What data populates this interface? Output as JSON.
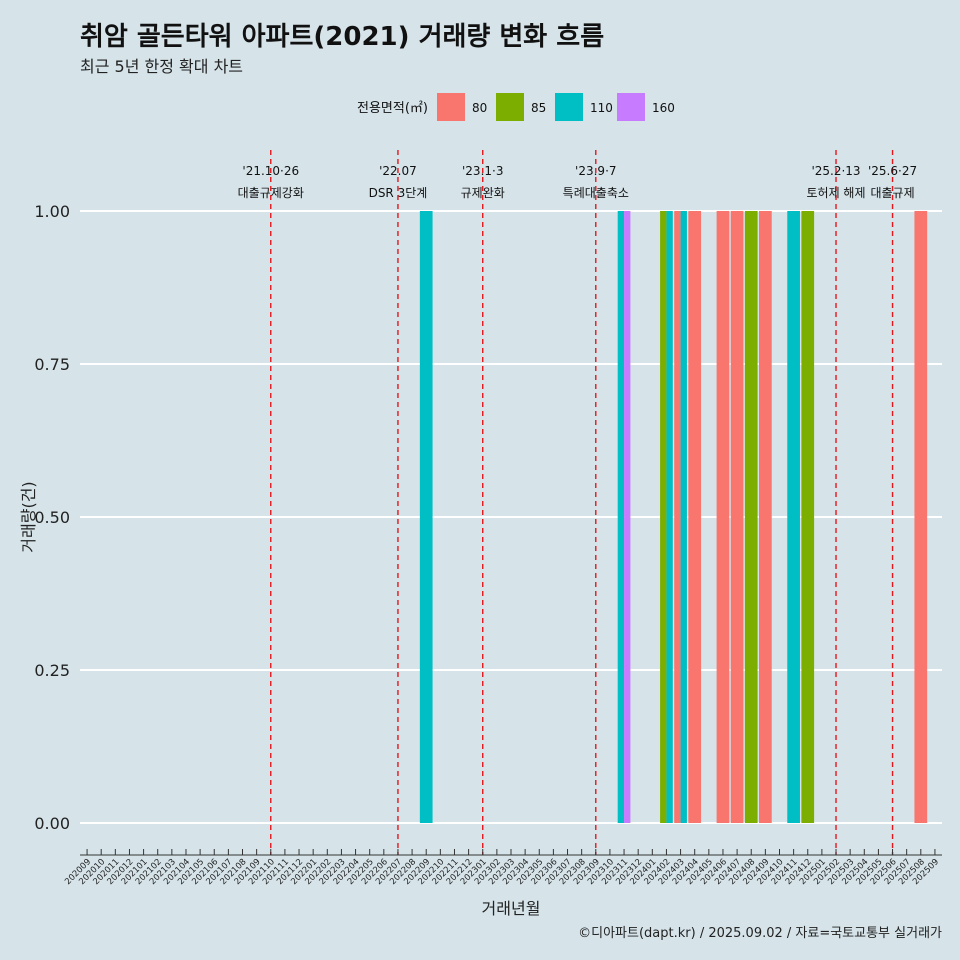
{
  "title": "취암 골든타워 아파트(2021) 거래량 변화 흐름",
  "subtitle": "최근 5년 한정 확대 차트",
  "caption": "©디아파트(dapt.kr) / 2025.09.02 / 자료=국토교통부 실거래가",
  "chart_data": {
    "type": "bar",
    "xlabel": "거래년월",
    "ylabel": "거래량(건)",
    "ylim": [
      0,
      1
    ],
    "yticks": [
      "0.00",
      "0.25",
      "0.50",
      "0.75",
      "1.00"
    ],
    "legend": {
      "title": "전용면적(㎡)",
      "position": "top",
      "items": [
        {
          "name": "80",
          "color": "#F8766D"
        },
        {
          "name": "85",
          "color": "#7CAE00"
        },
        {
          "name": "110",
          "color": "#00BFC4"
        },
        {
          "name": "160",
          "color": "#C77CFF"
        }
      ]
    },
    "categories": [
      "202009",
      "202010",
      "202011",
      "202012",
      "202101",
      "202102",
      "202103",
      "202104",
      "202105",
      "202106",
      "202107",
      "202108",
      "202109",
      "202110",
      "202111",
      "202112",
      "202201",
      "202202",
      "202203",
      "202204",
      "202205",
      "202206",
      "202207",
      "202208",
      "202209",
      "202210",
      "202211",
      "202212",
      "202301",
      "202302",
      "202303",
      "202304",
      "202305",
      "202306",
      "202307",
      "202308",
      "202309",
      "202310",
      "202311",
      "202312",
      "202401",
      "202402",
      "202403",
      "202404",
      "202405",
      "202406",
      "202407",
      "202408",
      "202409",
      "202410",
      "202411",
      "202412",
      "202501",
      "202502",
      "202503",
      "202504",
      "202505",
      "202506",
      "202507",
      "202508",
      "202509"
    ],
    "bars": [
      {
        "month": "202209",
        "area": "110",
        "value": 1
      },
      {
        "month": "202311",
        "area": "110",
        "value": 1
      },
      {
        "month": "202311",
        "area": "160",
        "value": 1
      },
      {
        "month": "202402",
        "area": "85",
        "value": 1
      },
      {
        "month": "202402",
        "area": "110",
        "value": 1
      },
      {
        "month": "202403",
        "area": "80",
        "value": 1
      },
      {
        "month": "202403",
        "area": "110",
        "value": 1
      },
      {
        "month": "202404",
        "area": "80",
        "value": 1
      },
      {
        "month": "202406",
        "area": "80",
        "value": 1
      },
      {
        "month": "202407",
        "area": "80",
        "value": 1
      },
      {
        "month": "202408",
        "area": "85",
        "value": 1
      },
      {
        "month": "202409",
        "area": "80",
        "value": 1
      },
      {
        "month": "202411",
        "area": "110",
        "value": 1
      },
      {
        "month": "202412",
        "area": "85",
        "value": 1
      },
      {
        "month": "202508",
        "area": "80",
        "value": 1
      }
    ],
    "events": [
      {
        "month": "202110",
        "date": "'21.10·26",
        "label": "대출규제강화"
      },
      {
        "month": "202207",
        "date": "'22.07",
        "label": "DSR 3단계"
      },
      {
        "month": "202301",
        "date": "'23.1·3",
        "label": "규제완화"
      },
      {
        "month": "202309",
        "date": "'23.9·7",
        "label": "특례대출축소"
      },
      {
        "month": "202502",
        "date": "'25.2·13",
        "label": "토허제 해제"
      },
      {
        "month": "202506",
        "date": "'25.6·27",
        "label": "대출규제"
      }
    ]
  }
}
